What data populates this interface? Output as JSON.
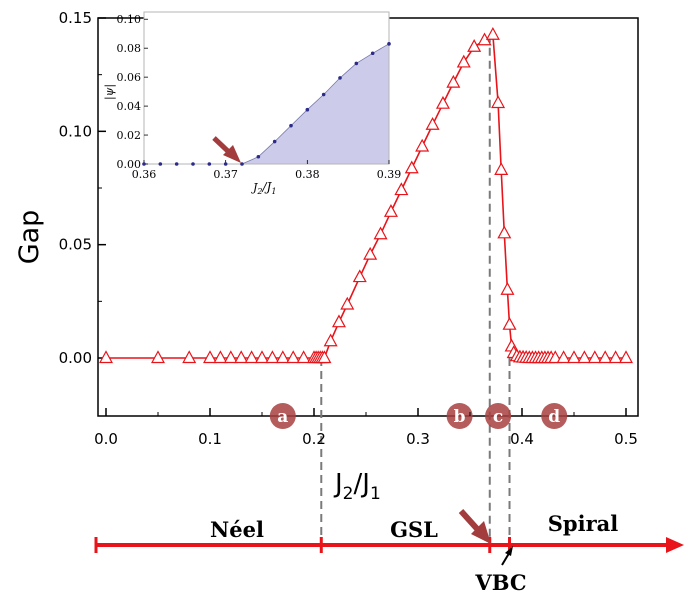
{
  "chart_data": [
    {
      "type": "line",
      "title": "",
      "xlabel": "J",
      "xlabel_sub": [
        {
          "text": "2",
          "after": "J"
        },
        {
          "text": "/J"
        },
        {
          "text": "1"
        }
      ],
      "ylabel": "Gap",
      "xlim": [
        -0.01,
        0.51
      ],
      "ylim": [
        -0.025,
        0.15
      ],
      "x_ticks": [
        0.0,
        0.1,
        0.2,
        0.3,
        0.4,
        0.5
      ],
      "x_tick_labels": [
        "0.0",
        "0.1",
        "0.2",
        "0.3",
        "0.4",
        "0.5"
      ],
      "y_ticks": [
        0.0,
        0.05,
        0.1,
        0.15
      ],
      "y_tick_labels": [
        "0.00",
        "0.05",
        "0.10",
        "0.15"
      ],
      "grid": false,
      "legend": "none",
      "series": [
        {
          "color": "#e8141a",
          "marker": "open-triangle",
          "points": [
            [
              0.0,
              0.0
            ],
            [
              0.05,
              0.0
            ],
            [
              0.08,
              0.0
            ],
            [
              0.1,
              0.0
            ],
            [
              0.11,
              0.0
            ],
            [
              0.12,
              0.0
            ],
            [
              0.13,
              0.0
            ],
            [
              0.14,
              0.0
            ],
            [
              0.15,
              0.0
            ],
            [
              0.16,
              0.0
            ],
            [
              0.17,
              0.0
            ],
            [
              0.18,
              0.0
            ],
            [
              0.19,
              0.0
            ],
            [
              0.2,
              0.0
            ],
            [
              0.202,
              0.0
            ],
            [
              0.204,
              0.0
            ],
            [
              0.206,
              0.0
            ],
            [
              0.208,
              0.0
            ],
            [
              0.21,
              0.0
            ],
            [
              0.216,
              0.0074
            ],
            [
              0.224,
              0.0158
            ],
            [
              0.232,
              0.0236
            ],
            [
              0.244,
              0.0357
            ],
            [
              0.254,
              0.0456
            ],
            [
              0.264,
              0.0546
            ],
            [
              0.274,
              0.0645
            ],
            [
              0.284,
              0.0741
            ],
            [
              0.294,
              0.0837
            ],
            [
              0.304,
              0.0933
            ],
            [
              0.314,
              0.1029
            ],
            [
              0.324,
              0.1122
            ],
            [
              0.334,
              0.1215
            ],
            [
              0.344,
              0.1304
            ],
            [
              0.354,
              0.1373
            ],
            [
              0.364,
              0.1402
            ],
            [
              0.372,
              0.1426
            ],
            [
              0.377,
              0.1125
            ],
            [
              0.38,
              0.083
            ],
            [
              0.383,
              0.055
            ],
            [
              0.386,
              0.0301
            ],
            [
              0.388,
              0.0147
            ],
            [
              0.39,
              0.0051
            ],
            [
              0.392,
              0.0022
            ],
            [
              0.395,
              0.0008
            ],
            [
              0.398,
              0.0003
            ],
            [
              0.401,
              0.0002
            ],
            [
              0.404,
              0.0001
            ],
            [
              0.407,
              0.0
            ],
            [
              0.41,
              0.0
            ],
            [
              0.413,
              0.0
            ],
            [
              0.416,
              0.0
            ],
            [
              0.419,
              0.0
            ],
            [
              0.422,
              0.0
            ],
            [
              0.425,
              0.0
            ],
            [
              0.428,
              0.0
            ],
            [
              0.432,
              0.0
            ],
            [
              0.44,
              0.0
            ],
            [
              0.45,
              0.0
            ],
            [
              0.46,
              0.0
            ],
            [
              0.47,
              0.0
            ],
            [
              0.48,
              0.0
            ],
            [
              0.49,
              0.0
            ],
            [
              0.5,
              0.0
            ]
          ]
        }
      ],
      "vertical_dashed_lines_x": [
        0.207,
        0.369,
        0.388
      ],
      "region_markers": [
        {
          "label": "a",
          "x": 0.17
        },
        {
          "label": "b",
          "x": 0.34
        },
        {
          "label": "c",
          "x": 0.377
        },
        {
          "label": "d",
          "x": 0.431
        }
      ],
      "phase_bar": {
        "labels": [
          "Néel",
          "GSL",
          "Spiral"
        ],
        "boundaries_x": [
          0.207,
          0.369,
          0.388
        ],
        "point_label": "VBC",
        "color": "#e8141a"
      }
    },
    {
      "type": "area",
      "title": "",
      "xlabel": "J",
      "xlabel_parts": [
        "J",
        "2",
        "/J",
        "1"
      ],
      "ylabel": "|ψ|",
      "xlim": [
        0.36,
        0.39
      ],
      "ylim": [
        0.0,
        0.105
      ],
      "x_ticks": [
        0.36,
        0.37,
        0.38,
        0.39
      ],
      "x_tick_labels": [
        "0.36",
        "0.37",
        "0.38",
        "0.39"
      ],
      "y_ticks": [
        0.0,
        0.02,
        0.04,
        0.06,
        0.08,
        0.1
      ],
      "y_tick_labels": [
        "0.00",
        "0.02",
        "0.04",
        "0.06",
        "0.08",
        "0.10"
      ],
      "fill_color": "#ccccea",
      "point_color": "#2b2b8a",
      "x": [
        0.36,
        0.362,
        0.364,
        0.366,
        0.368,
        0.37,
        0.372,
        0.374,
        0.376,
        0.378,
        0.38,
        0.382,
        0.384,
        0.386,
        0.388,
        0.39
      ],
      "y": [
        0.0,
        0.0,
        0.0,
        0.0,
        0.0,
        0.0,
        0.0,
        0.005,
        0.0155,
        0.0265,
        0.0375,
        0.048,
        0.0595,
        0.0695,
        0.0765,
        0.083
      ],
      "arrow_at_x": 0.372
    }
  ]
}
